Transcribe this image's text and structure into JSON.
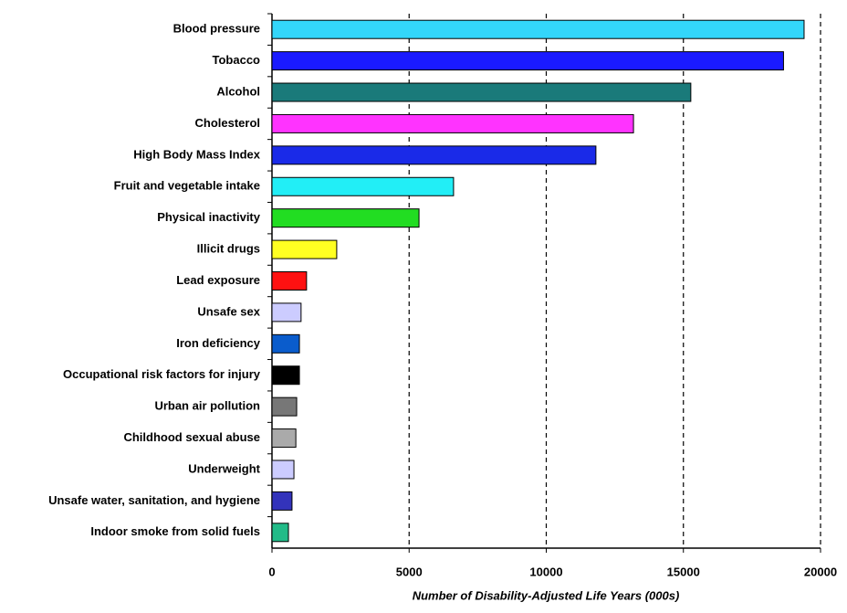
{
  "chart_data": {
    "type": "barh",
    "x_label": "Number of Disability-Adjusted Life Years (000s)",
    "categories": [
      "Blood pressure",
      "Tobacco",
      "Alcohol",
      "Cholesterol",
      "High Body Mass Index",
      "Fruit and vegetable intake",
      "Physical inactivity",
      "Illicit drugs",
      "Lead exposure",
      "Unsafe sex",
      "Iron deficiency",
      "Occupational risk factors for injury",
      "Urban air pollution",
      "Childhood sexual abuse",
      "Underweight",
      "Unsafe water, sanitation, and hygiene",
      "Indoor smoke from solid fuels"
    ],
    "values": [
      19400,
      18650,
      15270,
      13180,
      11810,
      6620,
      5360,
      2360,
      1260,
      1060,
      1000,
      1000,
      900,
      870,
      800,
      730,
      600
    ],
    "colors": [
      "#33d6fa",
      "#1a1aff",
      "#1a7a7a",
      "#ff33ff",
      "#1a2ae8",
      "#22eef6",
      "#22dd22",
      "#ffff22",
      "#ff1111",
      "#ccccff",
      "#0a5ccc",
      "#000000",
      "#777777",
      "#aaaaaa",
      "#ccccff",
      "#3333bb",
      "#22bb88"
    ],
    "xlim": [
      0,
      20000
    ],
    "xticks": [
      0,
      5000,
      10000,
      15000,
      20000
    ],
    "grid": true
  }
}
